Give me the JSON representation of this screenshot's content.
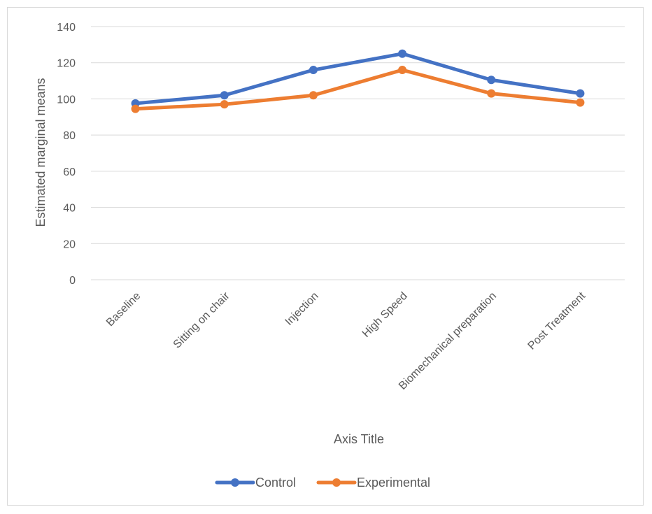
{
  "chart_data": {
    "type": "line",
    "title": "",
    "xlabel": "Axis Title",
    "ylabel": "Estimated marginal means",
    "ylim": [
      0,
      140
    ],
    "yticks": [
      0,
      20,
      40,
      60,
      80,
      100,
      120,
      140
    ],
    "grid": true,
    "legend_position": "bottom",
    "categories": [
      "Baseline",
      "Sitting on chair",
      "Injection",
      "High Speed",
      "Biomechanical preparation",
      "Post Treatment"
    ],
    "series": [
      {
        "name": "Control",
        "color": "#4472c4",
        "values": [
          97.5,
          102,
          116,
          125,
          110.5,
          103
        ]
      },
      {
        "name": "Experimental",
        "color": "#ed7d31",
        "values": [
          94.5,
          97,
          102,
          116,
          103,
          98
        ]
      }
    ]
  }
}
